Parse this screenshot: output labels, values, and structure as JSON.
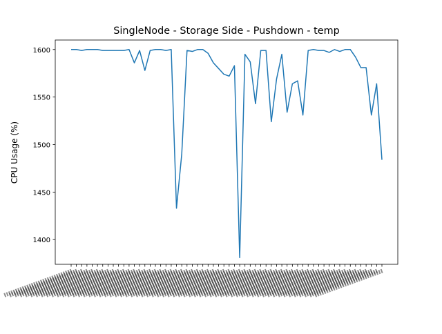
{
  "chart_data": {
    "type": "line",
    "title": "SingleNode - Storage Side - Pushdown - temp",
    "xlabel": "",
    "ylabel": "CPU Usage (%)",
    "ylim": [
      1374,
      1610
    ],
    "yticks": [
      1400,
      1450,
      1500,
      1550,
      1600
    ],
    "grid": false,
    "legend": "none",
    "x_tick_labels_note": "x tick labels are dense overlapping rotated timestamps (illegible)",
    "series": [
      {
        "color": "#1f77b4",
        "values": [
          1600,
          1600,
          1599,
          1600,
          1600,
          1600,
          1599,
          1599,
          1599,
          1599,
          1599,
          1600,
          1586,
          1599,
          1578,
          1599,
          1600,
          1600,
          1599,
          1600,
          1433,
          1490,
          1599,
          1598,
          1600,
          1600,
          1596,
          1586,
          1580,
          1574,
          1572,
          1583,
          1381,
          1595,
          1587,
          1543,
          1599,
          1599,
          1524,
          1569,
          1595,
          1534,
          1564,
          1567,
          1531,
          1599,
          1600,
          1599,
          1599,
          1597,
          1600,
          1598,
          1600,
          1600,
          1592,
          1581,
          1581,
          1531,
          1564,
          1484
        ]
      }
    ]
  }
}
